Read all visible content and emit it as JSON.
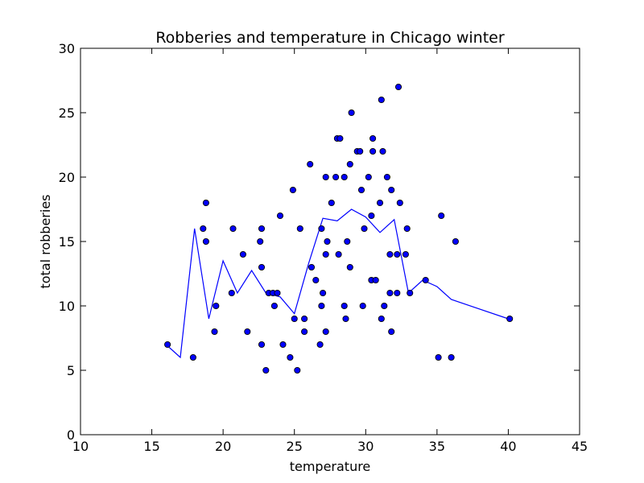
{
  "chart_data": {
    "type": "scatter",
    "title": "Robberies and temperature in Chicago winter",
    "xlabel": "temperature",
    "ylabel": "total robberies",
    "xlim": [
      10,
      45
    ],
    "ylim": [
      0,
      30
    ],
    "xticks": [
      "10",
      "15",
      "20",
      "25",
      "30",
      "35",
      "40",
      "45"
    ],
    "yticks": [
      "0",
      "5",
      "10",
      "15",
      "20",
      "25",
      "30"
    ],
    "grid": false,
    "colors": {
      "points": "#0000ff",
      "point_edge": "#000000",
      "line": "#0000ff"
    },
    "points": [
      [
        16.1,
        7
      ],
      [
        17.9,
        6
      ],
      [
        18.6,
        16
      ],
      [
        18.8,
        15
      ],
      [
        18.8,
        18
      ],
      [
        19.4,
        8
      ],
      [
        19.5,
        10
      ],
      [
        20.6,
        11
      ],
      [
        20.7,
        16
      ],
      [
        21.4,
        14
      ],
      [
        21.7,
        8
      ],
      [
        22.6,
        15
      ],
      [
        22.7,
        13
      ],
      [
        22.7,
        16
      ],
      [
        22.7,
        7
      ],
      [
        23.0,
        5
      ],
      [
        23.2,
        11
      ],
      [
        23.5,
        11
      ],
      [
        23.6,
        10
      ],
      [
        23.8,
        11
      ],
      [
        24.0,
        17
      ],
      [
        24.2,
        7
      ],
      [
        24.7,
        6
      ],
      [
        24.9,
        19
      ],
      [
        25.0,
        9
      ],
      [
        25.2,
        5
      ],
      [
        25.4,
        16
      ],
      [
        25.7,
        8
      ],
      [
        25.7,
        9
      ],
      [
        26.1,
        21
      ],
      [
        26.2,
        13
      ],
      [
        26.5,
        12
      ],
      [
        26.8,
        7
      ],
      [
        26.9,
        16
      ],
      [
        26.9,
        10
      ],
      [
        27.0,
        11
      ],
      [
        27.2,
        20
      ],
      [
        27.2,
        8
      ],
      [
        27.2,
        14
      ],
      [
        27.3,
        15
      ],
      [
        27.6,
        18
      ],
      [
        27.9,
        20
      ],
      [
        28.0,
        23
      ],
      [
        28.1,
        14
      ],
      [
        28.2,
        23
      ],
      [
        28.5,
        20
      ],
      [
        28.5,
        10
      ],
      [
        28.6,
        9
      ],
      [
        28.7,
        15
      ],
      [
        28.9,
        13
      ],
      [
        28.9,
        21
      ],
      [
        29.0,
        25
      ],
      [
        29.4,
        22
      ],
      [
        29.6,
        22
      ],
      [
        29.7,
        19
      ],
      [
        29.8,
        10
      ],
      [
        29.9,
        16
      ],
      [
        30.2,
        20
      ],
      [
        30.4,
        17
      ],
      [
        30.4,
        12
      ],
      [
        30.5,
        22
      ],
      [
        30.5,
        23
      ],
      [
        30.7,
        12
      ],
      [
        31.0,
        18
      ],
      [
        31.1,
        9
      ],
      [
        31.1,
        26
      ],
      [
        31.2,
        22
      ],
      [
        31.3,
        10
      ],
      [
        31.5,
        20
      ],
      [
        31.7,
        14
      ],
      [
        31.7,
        11
      ],
      [
        31.8,
        8
      ],
      [
        31.8,
        19
      ],
      [
        32.2,
        14
      ],
      [
        32.2,
        11
      ],
      [
        32.3,
        27
      ],
      [
        32.4,
        18
      ],
      [
        32.8,
        14
      ],
      [
        32.9,
        16
      ],
      [
        33.1,
        11
      ],
      [
        34.2,
        12
      ],
      [
        35.1,
        6
      ],
      [
        35.3,
        17
      ],
      [
        36.0,
        6
      ],
      [
        36.3,
        15
      ],
      [
        40.1,
        9
      ]
    ],
    "line": [
      [
        16,
        7
      ],
      [
        17,
        6
      ],
      [
        18,
        16
      ],
      [
        19,
        9
      ],
      [
        20,
        13.5
      ],
      [
        21,
        11
      ],
      [
        22,
        12.75
      ],
      [
        23,
        11
      ],
      [
        24,
        10.7
      ],
      [
        25,
        9.4
      ],
      [
        26,
        13.3
      ],
      [
        27,
        16.8
      ],
      [
        28,
        16.6
      ],
      [
        29,
        17.5
      ],
      [
        30,
        16.9
      ],
      [
        31,
        15.7
      ],
      [
        32,
        16.7
      ],
      [
        33,
        11
      ],
      [
        34,
        12
      ],
      [
        35,
        11.5
      ],
      [
        36,
        10.5
      ],
      [
        40,
        9
      ]
    ]
  }
}
